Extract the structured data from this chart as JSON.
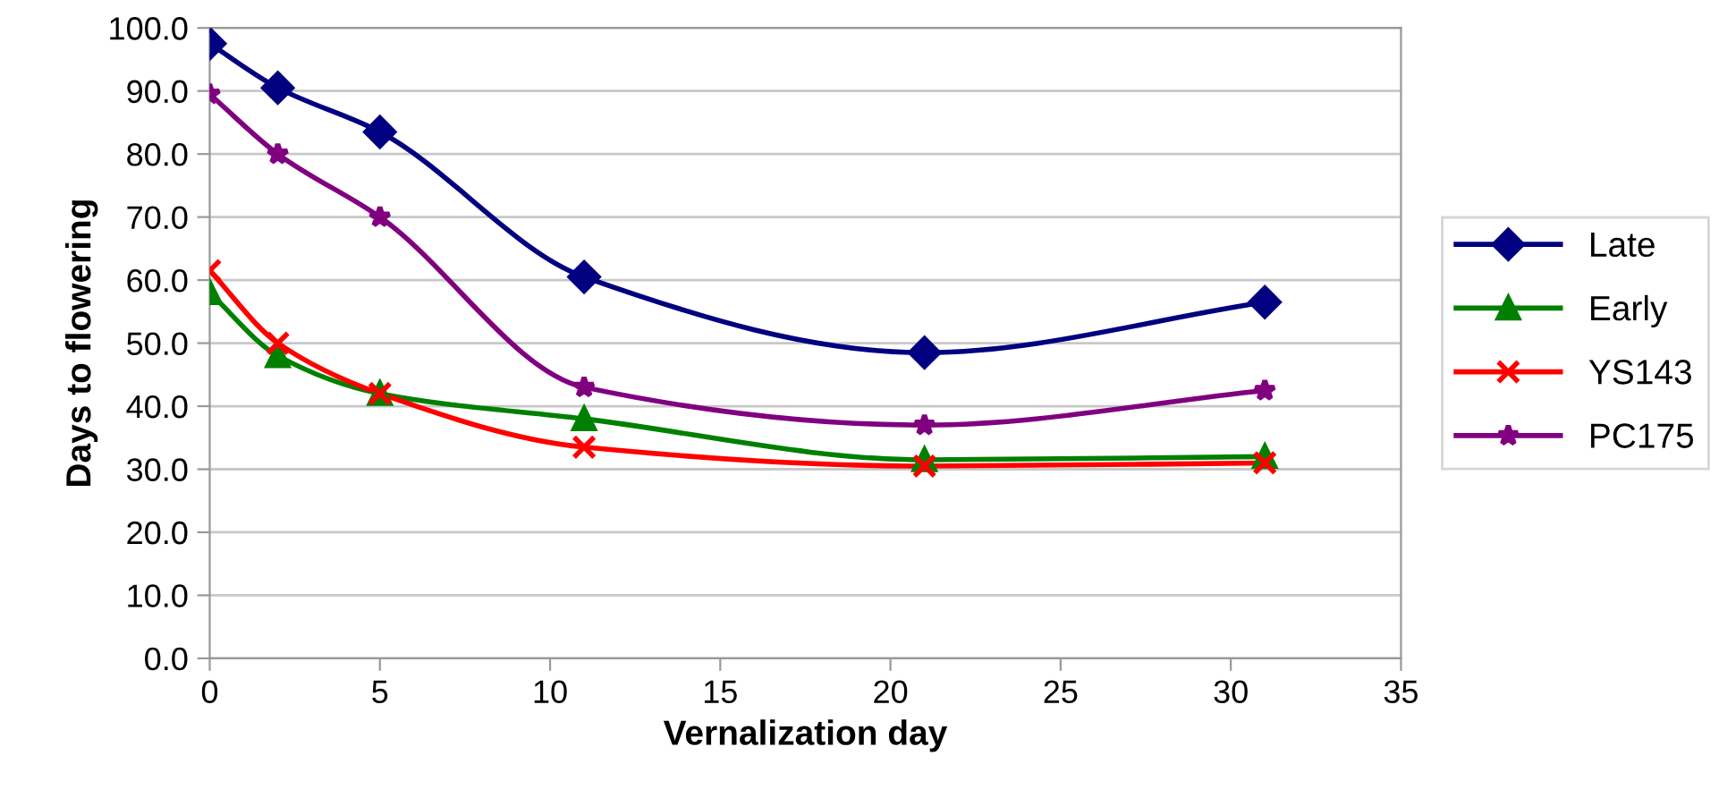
{
  "chart_data": {
    "type": "line",
    "xlabel": "Vernalization day",
    "ylabel": "Days to flowering",
    "x": [
      0,
      2,
      5,
      11,
      21,
      31
    ],
    "series": [
      {
        "name": "Late",
        "color": "#000080",
        "marker": "diamond",
        "values": [
          97.5,
          90.5,
          83.5,
          60.5,
          48.5,
          56.5
        ]
      },
      {
        "name": "Early",
        "color": "#008000",
        "marker": "triangle",
        "values": [
          58,
          48,
          42,
          38,
          31.5,
          32
        ]
      },
      {
        "name": "YS143",
        "color": "#ff0000",
        "marker": "cross",
        "values": [
          61.5,
          50,
          42,
          33.5,
          30.5,
          31
        ]
      },
      {
        "name": "PC175",
        "color": "#800080",
        "marker": "star",
        "values": [
          89.5,
          80,
          70,
          43,
          37,
          42.5
        ]
      }
    ],
    "xlim": [
      0,
      35
    ],
    "xticks": [
      0,
      5,
      10,
      15,
      20,
      25,
      30,
      35
    ],
    "ylim": [
      0,
      100
    ],
    "yticks": [
      {
        "value": 0,
        "label": "0.0"
      },
      {
        "value": 10,
        "label": "10.0"
      },
      {
        "value": 20,
        "label": "20.0"
      },
      {
        "value": 30,
        "label": "30.0"
      },
      {
        "value": 40,
        "label": "40.0"
      },
      {
        "value": 50,
        "label": "50.0"
      },
      {
        "value": 60,
        "label": "60.0"
      },
      {
        "value": 70,
        "label": "70.0"
      },
      {
        "value": 80,
        "label": "80.0"
      },
      {
        "value": 90,
        "label": "90.0"
      },
      {
        "value": 100,
        "label": "100.0"
      }
    ],
    "grid": "y",
    "legend": "right",
    "line_style": "solid"
  }
}
